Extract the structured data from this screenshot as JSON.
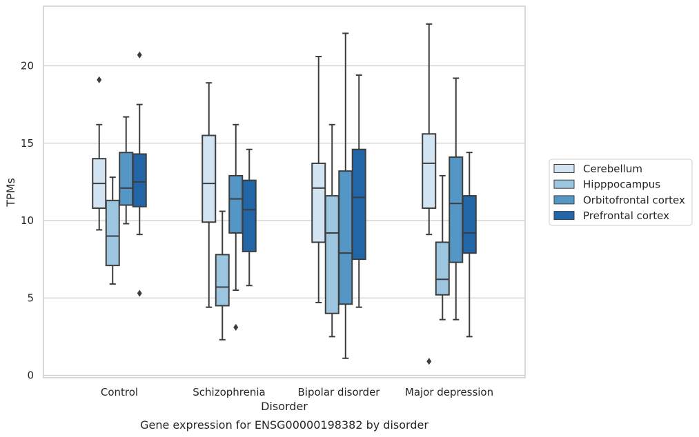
{
  "caption": "Gene expression for ENSG00000198382 by disorder",
  "chart_data": {
    "type": "box",
    "title": "",
    "xlabel": "Disorder",
    "ylabel": "TPMs",
    "categories": [
      "Control",
      "Schizophrenia",
      "Bipolar disorder",
      "Major depression"
    ],
    "yticks": [
      "0",
      "5",
      "10",
      "15",
      "20"
    ],
    "ylim": [
      -0.2,
      23.8
    ],
    "grid": "horizontal",
    "legend_position": "right",
    "series": [
      {
        "name": "Cerebellum",
        "color": "#d3e4f3",
        "boxes": [
          {
            "whislo": 9.4,
            "q1": 10.8,
            "med": 12.4,
            "q3": 14.0,
            "whishi": 16.2,
            "fliers": [
              19.1
            ]
          },
          {
            "whislo": 4.4,
            "q1": 9.9,
            "med": 12.4,
            "q3": 15.5,
            "whishi": 18.9,
            "fliers": []
          },
          {
            "whislo": 4.7,
            "q1": 8.6,
            "med": 12.1,
            "q3": 13.7,
            "whishi": 20.6,
            "fliers": []
          },
          {
            "whislo": 9.1,
            "q1": 10.8,
            "med": 13.7,
            "q3": 15.6,
            "whishi": 22.7,
            "fliers": [
              0.9
            ]
          }
        ]
      },
      {
        "name": "Hipppocampus",
        "color": "#9cc5df",
        "boxes": [
          {
            "whislo": 5.9,
            "q1": 7.1,
            "med": 9.0,
            "q3": 11.3,
            "whishi": 12.8,
            "fliers": []
          },
          {
            "whislo": 2.3,
            "q1": 4.5,
            "med": 5.7,
            "q3": 7.8,
            "whishi": 10.6,
            "fliers": []
          },
          {
            "whislo": 2.5,
            "q1": 4.0,
            "med": 9.2,
            "q3": 11.6,
            "whishi": 16.2,
            "fliers": []
          },
          {
            "whislo": 3.6,
            "q1": 5.2,
            "med": 6.2,
            "q3": 8.6,
            "whishi": 12.9,
            "fliers": []
          }
        ]
      },
      {
        "name": "Orbitofrontal cortex",
        "color": "#5497c6",
        "boxes": [
          {
            "whislo": 9.8,
            "q1": 11.0,
            "med": 12.1,
            "q3": 14.4,
            "whishi": 16.7,
            "fliers": []
          },
          {
            "whislo": 5.5,
            "q1": 9.2,
            "med": 11.4,
            "q3": 12.9,
            "whishi": 16.2,
            "fliers": [
              3.1
            ]
          },
          {
            "whislo": 1.1,
            "q1": 4.6,
            "med": 7.9,
            "q3": 13.2,
            "whishi": 22.1,
            "fliers": []
          },
          {
            "whislo": 3.6,
            "q1": 7.3,
            "med": 11.1,
            "q3": 14.1,
            "whishi": 19.2,
            "fliers": []
          }
        ]
      },
      {
        "name": "Prefrontal cortex",
        "color": "#2366a8",
        "boxes": [
          {
            "whislo": 9.1,
            "q1": 10.9,
            "med": 12.5,
            "q3": 14.3,
            "whishi": 17.5,
            "fliers": [
              5.3,
              20.7
            ]
          },
          {
            "whislo": 5.8,
            "q1": 8.0,
            "med": 10.7,
            "q3": 12.6,
            "whishi": 14.6,
            "fliers": []
          },
          {
            "whislo": 4.4,
            "q1": 7.5,
            "med": 11.5,
            "q3": 14.6,
            "whishi": 19.4,
            "fliers": []
          },
          {
            "whislo": 2.5,
            "q1": 7.9,
            "med": 9.2,
            "q3": 11.6,
            "whishi": 14.4,
            "fliers": []
          }
        ]
      }
    ]
  }
}
